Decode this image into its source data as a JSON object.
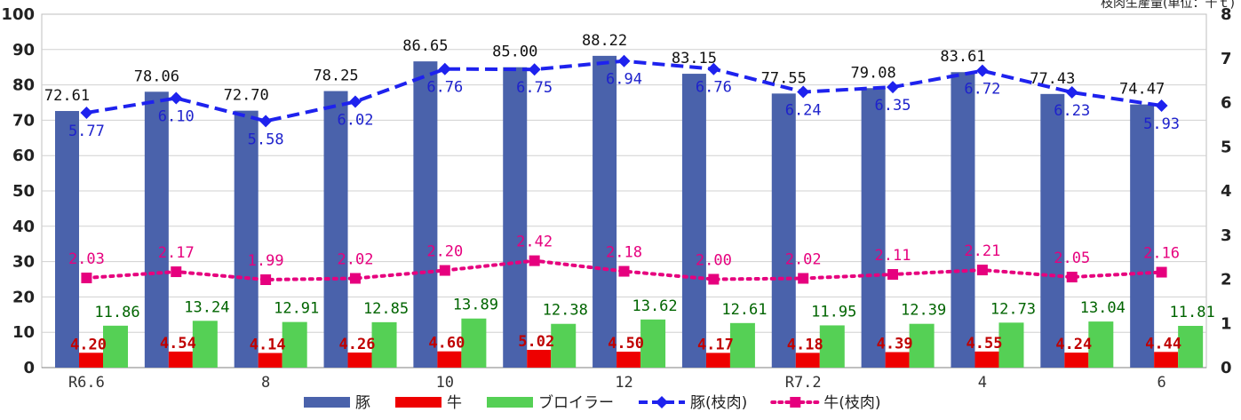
{
  "chart_data": {
    "type": "bar",
    "categories": [
      "R6.6",
      "",
      "8",
      "",
      "10",
      "",
      "12",
      "",
      "R7.2",
      "",
      "4",
      "",
      "6"
    ],
    "y_left": {
      "min": 0,
      "max": 100,
      "step": 10
    },
    "y_right": {
      "min": 0,
      "max": 8,
      "step": 1,
      "label": "枝肉生産量(単位：千ｔ)"
    },
    "legend_position": "bottom",
    "grid": true,
    "series": [
      {
        "name": "豚",
        "kind": "bar",
        "axis": "left",
        "color": "#4a62ab",
        "values": [
          72.61,
          78.06,
          72.7,
          78.25,
          86.65,
          85.0,
          88.22,
          83.15,
          77.55,
          79.08,
          83.61,
          77.43,
          74.47
        ],
        "labels": [
          "72.61",
          "78.06",
          "72.70",
          "78.25",
          "86.65",
          "85.00",
          "88.22",
          "83.15",
          "77.55",
          "79.08",
          "83.61",
          "77.43",
          "74.47"
        ]
      },
      {
        "name": "牛",
        "kind": "bar",
        "axis": "left",
        "color": "#ee0000",
        "values": [
          4.2,
          4.54,
          4.14,
          4.26,
          4.6,
          5.02,
          4.5,
          4.17,
          4.18,
          4.39,
          4.55,
          4.24,
          4.44
        ],
        "labels": [
          "4.20",
          "4.54",
          "4.14",
          "4.26",
          "4.60",
          "5.02",
          "4.50",
          "4.17",
          "4.18",
          "4.39",
          "4.55",
          "4.24",
          "4.44"
        ]
      },
      {
        "name": "ブロイラー",
        "kind": "bar",
        "axis": "left",
        "color": "#55d055",
        "values": [
          11.86,
          13.24,
          12.91,
          12.85,
          13.89,
          12.38,
          13.62,
          12.61,
          11.95,
          12.39,
          12.73,
          13.04,
          11.81
        ],
        "labels": [
          "11.86",
          "13.24",
          "12.91",
          "12.85",
          "13.89",
          "12.38",
          "13.62",
          "12.61",
          "11.95",
          "12.39",
          "12.73",
          "13.04",
          "11.81"
        ]
      },
      {
        "name": "豚(枝肉)",
        "kind": "line",
        "axis": "right",
        "color": "#1e22ee",
        "values": [
          5.77,
          6.1,
          5.58,
          6.02,
          6.76,
          6.75,
          6.94,
          6.76,
          6.24,
          6.35,
          6.72,
          6.23,
          5.93
        ],
        "labels": [
          "5.77",
          "6.10",
          "5.58",
          "6.02",
          "6.76",
          "6.75",
          "6.94",
          "6.76",
          "6.24",
          "6.35",
          "6.72",
          "6.23",
          "5.93"
        ]
      },
      {
        "name": "牛(枝肉)",
        "kind": "line",
        "axis": "right",
        "color": "#e6007e",
        "values": [
          2.03,
          2.17,
          1.99,
          2.02,
          2.2,
          2.42,
          2.18,
          2.0,
          2.02,
          2.11,
          2.21,
          2.05,
          2.16
        ],
        "labels": [
          "2.03",
          "2.17",
          "1.99",
          "2.02",
          "2.20",
          "2.42",
          "2.18",
          "2.00",
          "2.02",
          "2.11",
          "2.21",
          "2.05",
          "2.16"
        ]
      }
    ]
  }
}
